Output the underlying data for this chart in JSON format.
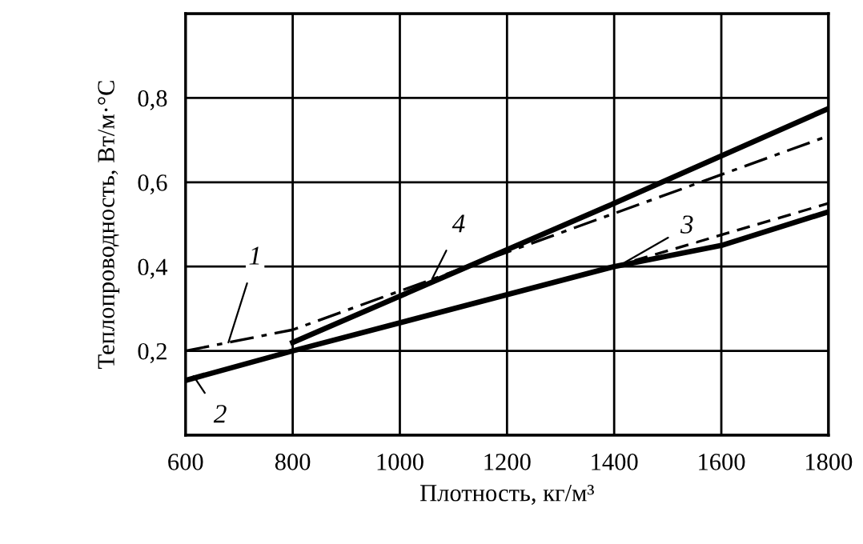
{
  "chart_data": {
    "type": "line",
    "xlabel": "Плотность, кг/м³",
    "ylabel": "Теплопроводность, Вт/м·°С",
    "xlim": [
      600,
      1800
    ],
    "xticks": [
      600,
      800,
      1000,
      1200,
      1400,
      1600,
      1800
    ],
    "ylim": [
      0,
      1.0
    ],
    "yticks": [
      {
        "value": 0,
        "label": null
      },
      {
        "value": 0.2,
        "label": "0,2"
      },
      {
        "value": 0.4,
        "label": "0,4"
      },
      {
        "value": 0.6,
        "label": "0,6"
      },
      {
        "value": 0.8,
        "label": "0,8"
      },
      {
        "value": 1.0,
        "label": null
      }
    ],
    "grid": true,
    "marker": "none",
    "series": [
      {
        "color": "#000000",
        "line_style": "dashdot",
        "x": [
          600,
          800,
          1800
        ],
        "values": [
          0.2,
          0.25,
          0.71
        ]
      },
      {
        "color": "#000000",
        "line_style": "solid",
        "x": [
          600,
          800,
          1400,
          1600,
          1800
        ],
        "values": [
          0.13,
          0.2,
          0.4,
          0.45,
          0.53
        ]
      },
      {
        "color": "#000000",
        "line_style": "dashed",
        "x": [
          1400,
          1800
        ],
        "values": [
          0.4,
          0.55
        ]
      },
      {
        "color": "#000000",
        "line_style": "solid",
        "x": [
          800,
          1400,
          1800
        ],
        "values": [
          0.22,
          0.55,
          0.775
        ]
      }
    ],
    "annotations": [
      {
        "text": "1",
        "x": 680,
        "y": 0.22
      },
      {
        "text": "2",
        "x": 615,
        "y": 0.14
      },
      {
        "text": "3",
        "x": 1420,
        "y": 0.41
      },
      {
        "text": "4",
        "x": 1060,
        "y": 0.37
      }
    ]
  }
}
